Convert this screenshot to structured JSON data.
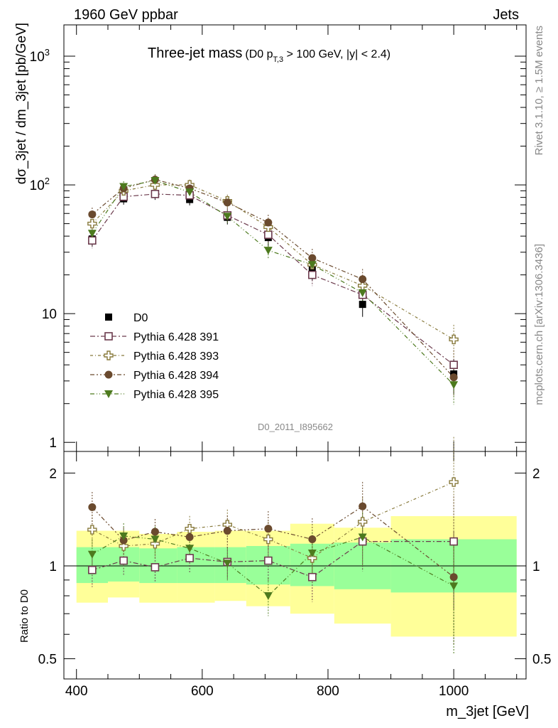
{
  "header": {
    "left": "1960 GeV ppbar",
    "right": "Jets",
    "side_rivet": "Rivet 3.1.10, ≥ 1.5M events",
    "side_mcplots": "mcplots.cern.ch [arXiv:1306.3436]"
  },
  "plot": {
    "title_main": "Three-jet mass",
    "title_cut_pre": "(D0 p",
    "title_cut_sub": "T,3",
    "title_cut_post": " > 100 GeV, |y| < 2.4)",
    "analysis_id": "D0_2011_I895662"
  },
  "colors": {
    "s391": "#6b3a4c",
    "s393": "#887a3c",
    "s394": "#6a4a2e",
    "s395": "#4d7a1e",
    "band_inner": "#99ff99",
    "band_outer": "#ffff99"
  },
  "chart_data": [
    {
      "type": "scatter",
      "title": "Three-jet mass",
      "xlabel": "m_3jet [GeV]",
      "ylabel": "dσ_3jet / dm_3jet [pb/GeV]",
      "xlim": [
        380,
        1115
      ],
      "ylim": [
        0.85,
        1750
      ],
      "yscale": "log",
      "xticks": [
        "400",
        "600",
        "800",
        "1000"
      ],
      "yticks": [
        "1",
        "10",
        "10²",
        "10³"
      ],
      "legend_position": "lower-left",
      "x": [
        425,
        475,
        525,
        580,
        640,
        705,
        775,
        855,
        1000
      ],
      "series": [
        {
          "name": "D0",
          "marker": "square-filled",
          "color": "#000000",
          "values": [
            38,
            78,
            85,
            77,
            56,
            39,
            22,
            11.8,
            3.4
          ]
        },
        {
          "name": "Pythia 6.428 391",
          "marker": "square-open",
          "color": "#6b3a4c",
          "values": [
            37,
            81,
            85,
            83,
            58,
            41,
            20,
            14,
            4.0
          ]
        },
        {
          "name": "Pythia 6.428 393",
          "marker": "cross-open",
          "color": "#887a3c",
          "values": [
            50,
            90,
            100,
            100,
            75,
            47,
            24,
            16.5,
            6.3
          ]
        },
        {
          "name": "Pythia 6.428 394",
          "marker": "circle-filled",
          "color": "#6a4a2e",
          "values": [
            59,
            94,
            110,
            94,
            73,
            51,
            27,
            18.5,
            3.2
          ]
        },
        {
          "name": "Pythia 6.428 395",
          "marker": "triangle-down-filled",
          "color": "#4d7a1e",
          "values": [
            42,
            97,
            108,
            88,
            57,
            31,
            24,
            14.5,
            2.8
          ]
        }
      ]
    },
    {
      "type": "scatter",
      "xlabel": "m_3jet [GeV]",
      "ylabel": "Ratio to D0",
      "xlim": [
        380,
        1115
      ],
      "ylim": [
        0.43,
        2.35
      ],
      "yscale": "log",
      "yticks": [
        "0.5",
        "1",
        "2"
      ],
      "x": [
        425,
        475,
        525,
        580,
        640,
        705,
        775,
        855,
        1000
      ],
      "bins": [
        400,
        450,
        500,
        560,
        620,
        670,
        740,
        810,
        900,
        1100
      ],
      "band_inner": [
        [
          0.88,
          1.15
        ],
        [
          0.89,
          1.15
        ],
        [
          0.88,
          1.14
        ],
        [
          0.88,
          1.15
        ],
        [
          0.88,
          1.15
        ],
        [
          0.87,
          1.16
        ],
        [
          0.86,
          1.18
        ],
        [
          0.84,
          1.19
        ],
        [
          0.82,
          1.22
        ]
      ],
      "band_outer": [
        [
          0.76,
          1.3
        ],
        [
          0.79,
          1.3
        ],
        [
          0.76,
          1.27
        ],
        [
          0.76,
          1.29
        ],
        [
          0.77,
          1.3
        ],
        [
          0.74,
          1.3
        ],
        [
          0.7,
          1.37
        ],
        [
          0.65,
          1.33
        ],
        [
          0.59,
          1.45
        ]
      ],
      "series": [
        {
          "name": "Pythia 6.428 391",
          "values": [
            0.97,
            1.04,
            0.99,
            1.06,
            1.03,
            1.04,
            0.92,
            1.2,
            1.2
          ]
        },
        {
          "name": "Pythia 6.428 393",
          "values": [
            1.31,
            1.16,
            1.18,
            1.32,
            1.36,
            1.22,
            1.06,
            1.39,
            1.87
          ]
        },
        {
          "name": "Pythia 6.428 394",
          "values": [
            1.55,
            1.21,
            1.29,
            1.24,
            1.3,
            1.32,
            1.22,
            1.56,
            0.92
          ]
        },
        {
          "name": "Pythia 6.428 395",
          "values": [
            1.09,
            1.25,
            1.22,
            1.14,
            1.02,
            0.8,
            1.1,
            1.24,
            0.86
          ]
        }
      ]
    }
  ]
}
